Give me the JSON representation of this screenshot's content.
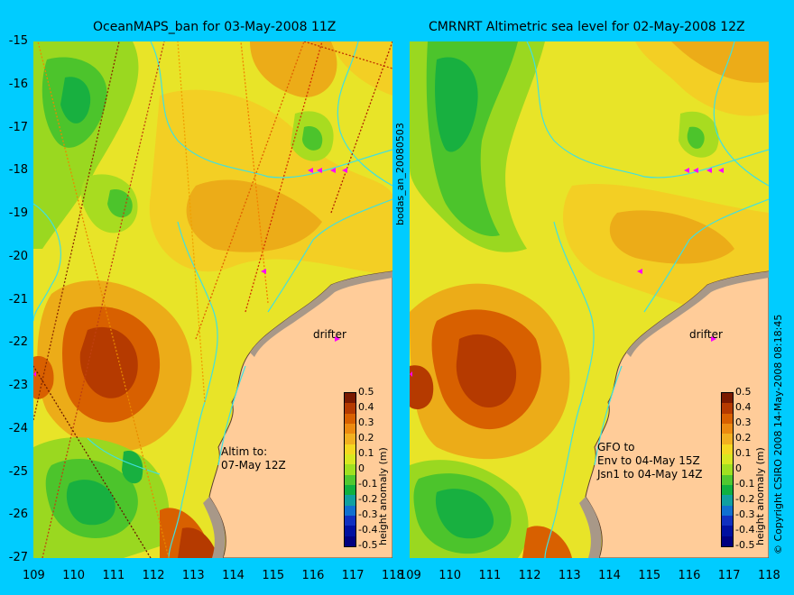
{
  "panels": [
    {
      "title": "OceanMAPS_ban for 03-May-2008 11Z",
      "note_lines": [
        "Altim to:",
        "07-May 12Z"
      ],
      "drifter_label": "drifter"
    },
    {
      "title": "CMRNRT Altimetric sea level  for 02-May-2008 12Z",
      "note_lines": [
        "GFO to",
        "Env to 04-May 15Z",
        "Jsn1 to 04-May 14Z"
      ],
      "drifter_label": "drifter"
    }
  ],
  "axes": {
    "y_ticks": [
      "-15",
      "-16",
      "-17",
      "-18",
      "-19",
      "-20",
      "-21",
      "-22",
      "-23",
      "-24",
      "-25",
      "-26",
      "-27"
    ],
    "x_ticks": [
      "109",
      "110",
      "111",
      "112",
      "113",
      "114",
      "115",
      "116",
      "117",
      "118"
    ],
    "lat_range": [
      -27,
      -15
    ],
    "lon_range": [
      109,
      118
    ]
  },
  "colorbar": {
    "label": "height anomaly (m)",
    "ticks": [
      "0.5",
      "0.4",
      "0.3",
      "0.2",
      "0.1",
      "0",
      "-0.1",
      "-0.2",
      "-0.3",
      "-0.4",
      "-0.5"
    ],
    "colors": [
      "#7a1a00",
      "#b53a00",
      "#d86000",
      "#ec8a10",
      "#f2b020",
      "#f5d820",
      "#d8e820",
      "#a0e020",
      "#50c830",
      "#10b040",
      "#10a0a0",
      "#1070d0",
      "#1030c0",
      "#0010a0",
      "#000080"
    ]
  },
  "side_texts": {
    "middle": "bodas_an_20080503",
    "right": "© Copyright CSIRO 2008   14-May-2008 08:18:45"
  },
  "colors": {
    "background": "#00CCFF",
    "land": "#FFCC99",
    "coast_shelf": "#C0B0A0",
    "drifter_marker": "#FF00FF"
  }
}
